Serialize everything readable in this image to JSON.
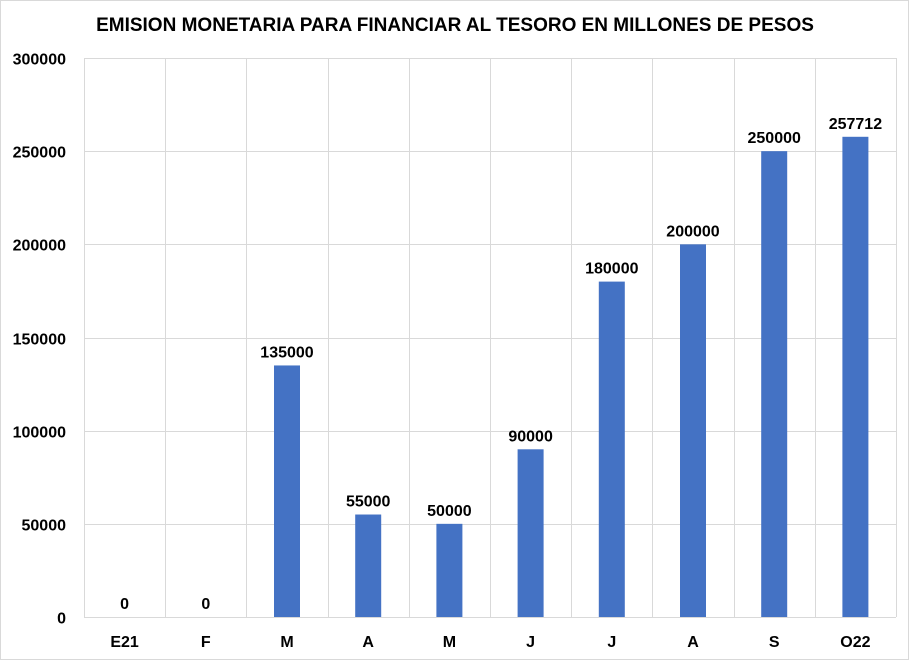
{
  "chart_data": {
    "type": "bar",
    "title": "EMISION MONETARIA  PARA FINANCIAR  AL TESORO EN MILLONES  DE PESOS",
    "categories": [
      "E21",
      "F",
      "M",
      "A",
      "M",
      "J",
      "J",
      "A",
      "S",
      "O22"
    ],
    "values": [
      0,
      0,
      135000,
      55000,
      50000,
      90000,
      180000,
      200000,
      250000,
      257712
    ],
    "data_labels": [
      "0",
      "0",
      "135000",
      "55000",
      "50000",
      "90000",
      "180000",
      "200000",
      "250000",
      "257712"
    ],
    "yticks": [
      0,
      50000,
      100000,
      150000,
      200000,
      250000,
      300000
    ],
    "ytick_labels": [
      "0",
      "50000",
      "100000",
      "150000",
      "200000",
      "250000",
      "300000"
    ],
    "ylim": [
      0,
      300000
    ],
    "xlabel": "",
    "ylabel": "",
    "grid": true,
    "legend": "none",
    "bar_color": "#4472C4"
  }
}
